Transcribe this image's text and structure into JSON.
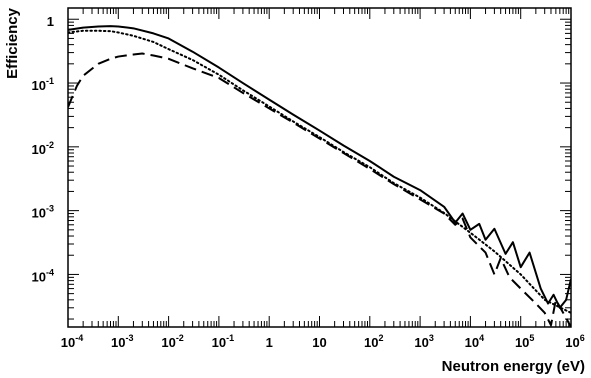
{
  "chart_data": {
    "type": "line",
    "title": "",
    "xlabel": "Neutron energy (eV)",
    "ylabel": "Efficiency",
    "xscale": "log",
    "yscale": "log",
    "xlim": [
      0.0001,
      1000000
    ],
    "ylim": [
      1.5e-05,
      1.5
    ],
    "grid": false,
    "legend": "none",
    "x_ticks": [
      {
        "value": 0.0001,
        "base": "10",
        "exp": "-4"
      },
      {
        "value": 0.001,
        "base": "10",
        "exp": "-3"
      },
      {
        "value": 0.01,
        "base": "10",
        "exp": "-2"
      },
      {
        "value": 0.1,
        "base": "10",
        "exp": "-1"
      },
      {
        "value": 1,
        "base": "1",
        "exp": ""
      },
      {
        "value": 10,
        "base": "10",
        "exp": ""
      },
      {
        "value": 100,
        "base": "10",
        "exp": "2"
      },
      {
        "value": 1000,
        "base": "10",
        "exp": "3"
      },
      {
        "value": 10000,
        "base": "10",
        "exp": "4"
      },
      {
        "value": 100000,
        "base": "10",
        "exp": "5"
      },
      {
        "value": 1000000,
        "base": "10",
        "exp": "6"
      }
    ],
    "y_ticks": [
      {
        "value": 0.0001,
        "base": "10",
        "exp": "-4"
      },
      {
        "value": 0.001,
        "base": "10",
        "exp": "-3"
      },
      {
        "value": 0.01,
        "base": "10",
        "exp": "-2"
      },
      {
        "value": 0.1,
        "base": "10",
        "exp": "-1"
      },
      {
        "value": 1,
        "base": "1",
        "exp": ""
      }
    ],
    "series": [
      {
        "style": "solid",
        "color": "#000000",
        "points": [
          [
            0.0001,
            0.68
          ],
          [
            0.0002,
            0.74
          ],
          [
            0.0004,
            0.77
          ],
          [
            0.0007,
            0.78
          ],
          [
            0.001,
            0.77
          ],
          [
            0.002,
            0.72
          ],
          [
            0.005,
            0.6
          ],
          [
            0.01,
            0.5
          ],
          [
            0.03,
            0.31
          ],
          [
            0.1,
            0.175
          ],
          [
            0.3,
            0.1
          ],
          [
            1,
            0.055
          ],
          [
            3,
            0.032
          ],
          [
            10,
            0.018
          ],
          [
            30,
            0.0105
          ],
          [
            100,
            0.006
          ],
          [
            300,
            0.0034
          ],
          [
            1000,
            0.0021
          ],
          [
            3000,
            0.00115
          ],
          [
            5000,
            0.00065
          ],
          [
            7000,
            0.0009
          ],
          [
            10000,
            0.0005
          ],
          [
            15000,
            0.00062
          ],
          [
            20000,
            0.00035
          ],
          [
            30000,
            0.00052
          ],
          [
            50000,
            0.00021
          ],
          [
            70000,
            0.00032
          ],
          [
            100000,
            0.00013
          ],
          [
            150000,
            0.00022
          ],
          [
            250000,
            6e-05
          ],
          [
            350000,
            3.5e-05
          ],
          [
            450000,
            4.8e-05
          ],
          [
            600000,
            3e-05
          ],
          [
            800000,
            4e-05
          ],
          [
            1000000,
            8.5e-05
          ]
        ]
      },
      {
        "style": "dotted",
        "color": "#000000",
        "points": [
          [
            0.0001,
            0.62
          ],
          [
            0.0002,
            0.66
          ],
          [
            0.0004,
            0.66
          ],
          [
            0.0007,
            0.65
          ],
          [
            0.001,
            0.62
          ],
          [
            0.002,
            0.55
          ],
          [
            0.005,
            0.44
          ],
          [
            0.01,
            0.34
          ],
          [
            0.03,
            0.23
          ],
          [
            0.1,
            0.135
          ],
          [
            0.3,
            0.077
          ],
          [
            1,
            0.043
          ],
          [
            3,
            0.025
          ],
          [
            10,
            0.0142
          ],
          [
            30,
            0.0083
          ],
          [
            100,
            0.0048
          ],
          [
            300,
            0.0027
          ],
          [
            1000,
            0.0016
          ],
          [
            3000,
            0.00092
          ],
          [
            10000,
            0.00045
          ],
          [
            30000,
            0.00023
          ],
          [
            100000,
            0.0001
          ],
          [
            300000,
            4e-05
          ],
          [
            1000000,
            2.5e-05
          ]
        ]
      },
      {
        "style": "dashed",
        "color": "#000000",
        "points": [
          [
            0.0001,
            0.042
          ],
          [
            0.00015,
            0.09
          ],
          [
            0.0002,
            0.13
          ],
          [
            0.0004,
            0.2
          ],
          [
            0.0007,
            0.24
          ],
          [
            0.001,
            0.26
          ],
          [
            0.002,
            0.28
          ],
          [
            0.003,
            0.29
          ],
          [
            0.005,
            0.27
          ],
          [
            0.01,
            0.24
          ],
          [
            0.03,
            0.17
          ],
          [
            0.1,
            0.12
          ],
          [
            0.3,
            0.07
          ],
          [
            1,
            0.04
          ],
          [
            3,
            0.024
          ],
          [
            10,
            0.0135
          ],
          [
            30,
            0.008
          ],
          [
            100,
            0.0045
          ],
          [
            300,
            0.0026
          ],
          [
            1000,
            0.0015
          ],
          [
            3000,
            0.0009
          ],
          [
            5000,
            0.0006
          ],
          [
            7000,
            0.00075
          ],
          [
            10000,
            0.00038
          ],
          [
            20000,
            0.00022
          ],
          [
            30000,
            0.0001
          ],
          [
            40000,
            0.00018
          ],
          [
            60000,
            9e-05
          ],
          [
            100000,
            6e-05
          ],
          [
            200000,
            3.5e-05
          ],
          [
            300000,
            2.5e-05
          ],
          [
            400000,
            1.6e-05
          ],
          [
            500000,
            4e-05
          ],
          [
            700000,
            2.5e-05
          ],
          [
            1000000,
            1.5e-05
          ]
        ]
      }
    ]
  }
}
